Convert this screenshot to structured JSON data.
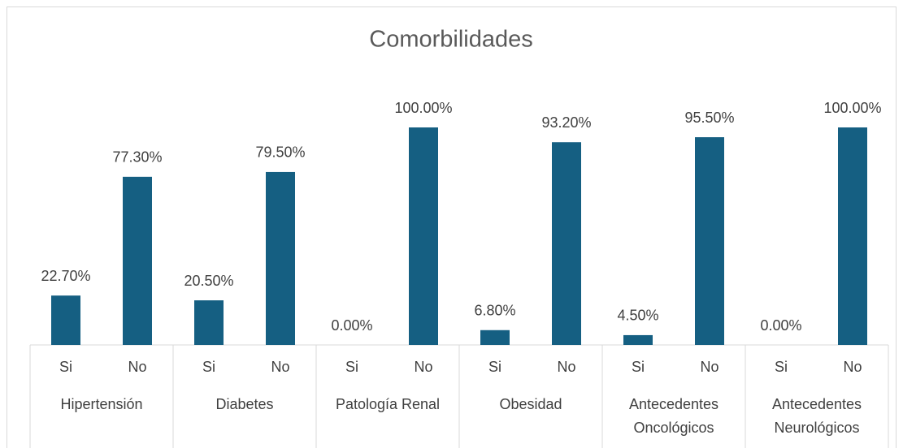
{
  "chart_data": {
    "type": "bar",
    "title": "Comorbilidades",
    "groups": [
      "Hipertensión",
      "Diabetes",
      "Patología Renal",
      "Obesidad",
      "Antecedentes Oncológicos",
      "Antecedentes Neurológicos"
    ],
    "categories": [
      "Si",
      "No",
      "Si",
      "No",
      "Si",
      "No",
      "Si",
      "No",
      "Si",
      "No",
      "Si",
      "No"
    ],
    "values": [
      22.7,
      77.3,
      20.5,
      79.5,
      0,
      100,
      6.8,
      93.2,
      4.5,
      95.5,
      0,
      100
    ],
    "value_labels": [
      "22.70%",
      "77.30%",
      "20.50%",
      "79.50%",
      "0.00%",
      "100.00%",
      "6.80%",
      "93.20%",
      "4.50%",
      "95.50%",
      "0.00%",
      "100.00%"
    ],
    "color": "#155f82"
  }
}
